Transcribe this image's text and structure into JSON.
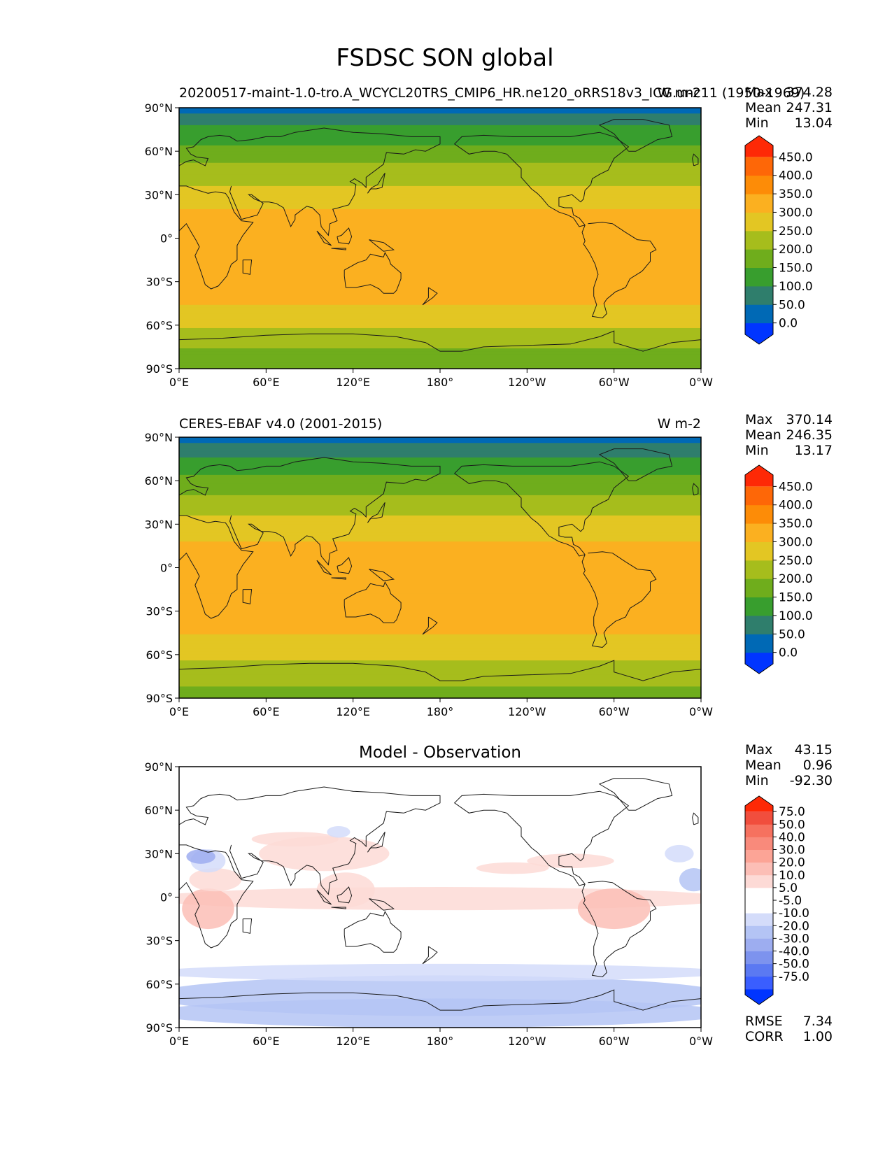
{
  "figure": {
    "title": "FSDSC SON global"
  },
  "colors": {
    "abs_levels": [
      "#0035ff",
      "#0069b5",
      "#2f7e6c",
      "#389e2e",
      "#6fad1c",
      "#a6bd1c",
      "#e3c623",
      "#fbb020",
      "#fd8c07",
      "#fe6707",
      "#fe2906"
    ],
    "diff_levels": [
      "#0035ff",
      "#3a5eff",
      "#5b79f2",
      "#7d93ee",
      "#9dadf0",
      "#b4c4f5",
      "#d4dcfa",
      "#ffffff",
      "#ffffff",
      "#fddad6",
      "#fcbeb6",
      "#fca496",
      "#f98a7b",
      "#f6715f",
      "#f14e3d",
      "#fe2906"
    ]
  },
  "chart_data": [
    {
      "type": "heatmap",
      "title_left": "20200517-maint-1.0-tro.A_WCYCL20TRS_CMIP6_HR.ne120_oRRS18v3_ICG.unc11 (1950-1969)",
      "title_right": "W m-2",
      "stats": {
        "max_label": "Max",
        "max": "374.28",
        "mean_label": "Mean",
        "mean": "247.31",
        "min_label": "Min",
        "min": "13.04"
      },
      "colorbar_ticks": [
        "450.0",
        "400.0",
        "350.0",
        "300.0",
        "250.0",
        "200.0",
        "150.0",
        "100.0",
        "50.0",
        "0.0"
      ],
      "xticks": [
        "0°E",
        "60°E",
        "120°E",
        "180°",
        "120°W",
        "60°W",
        "0°W"
      ],
      "yticks": [
        "90°N",
        "60°N",
        "30°N",
        "0°",
        "30°S",
        "60°S",
        "90°S"
      ],
      "zonal_profile_lat": [
        -90,
        -75,
        -60,
        -45,
        -30,
        -15,
        0,
        15,
        30,
        45,
        60,
        75,
        90
      ],
      "zonal_profile_value": [
        190,
        200,
        260,
        305,
        330,
        340,
        335,
        315,
        270,
        225,
        165,
        115,
        20
      ]
    },
    {
      "type": "heatmap",
      "title_left": "CERES-EBAF v4.0 (2001-2015)",
      "title_right": "W m-2",
      "stats": {
        "max_label": "Max",
        "max": "370.14",
        "mean_label": "Mean",
        "mean": "246.35",
        "min_label": "Min",
        "min": "13.17"
      },
      "colorbar_ticks": [
        "450.0",
        "400.0",
        "350.0",
        "300.0",
        "250.0",
        "200.0",
        "150.0",
        "100.0",
        "50.0",
        "0.0"
      ],
      "xticks": [
        "0°E",
        "60°E",
        "120°E",
        "180°",
        "120°W",
        "60°W",
        "0°W"
      ],
      "yticks": [
        "90°N",
        "60°N",
        "30°N",
        "0°",
        "30°S",
        "60°S",
        "90°S"
      ],
      "zonal_profile_lat": [
        -90,
        -75,
        -60,
        -45,
        -30,
        -15,
        0,
        15,
        30,
        45,
        60,
        75,
        90
      ],
      "zonal_profile_value": [
        185,
        215,
        260,
        300,
        330,
        340,
        330,
        310,
        265,
        220,
        160,
        110,
        20
      ]
    },
    {
      "type": "heatmap",
      "title_center": "Model - Observation",
      "stats": {
        "max_label": "Max",
        "max": "43.15",
        "mean_label": "Mean",
        "mean": "0.96",
        "min_label": "Min",
        "min": "-92.30"
      },
      "colorbar_ticks": [
        "75.0",
        "50.0",
        "40.0",
        "30.0",
        "20.0",
        "10.0",
        "5.0",
        "-5.0",
        "-10.0",
        "-20.0",
        "-30.0",
        "-40.0",
        "-50.0",
        "-75.0"
      ],
      "xticks": [
        "0°E",
        "60°E",
        "120°E",
        "180°",
        "120°W",
        "60°W",
        "0°W"
      ],
      "yticks": [
        "90°N",
        "60°N",
        "30°N",
        "0°",
        "30°S",
        "60°S",
        "90°S"
      ],
      "rmse_label": "RMSE",
      "rmse": "7.34",
      "corr_label": "CORR",
      "corr": "1.00"
    }
  ]
}
